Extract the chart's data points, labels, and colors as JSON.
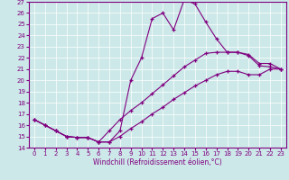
{
  "xlabel": "Windchill (Refroidissement éolien,°C)",
  "xlim": [
    -0.5,
    23.5
  ],
  "ylim": [
    14,
    27
  ],
  "xticks": [
    0,
    1,
    2,
    3,
    4,
    5,
    6,
    7,
    8,
    9,
    10,
    11,
    12,
    13,
    14,
    15,
    16,
    17,
    18,
    19,
    20,
    21,
    22,
    23
  ],
  "yticks": [
    14,
    15,
    16,
    17,
    18,
    19,
    20,
    21,
    22,
    23,
    24,
    25,
    26,
    27
  ],
  "bg_color": "#cce8e8",
  "line_color": "#800080",
  "c1x": [
    0,
    1,
    2,
    3,
    4,
    5,
    6,
    7,
    8,
    9,
    10,
    11,
    12,
    13,
    14,
    15,
    16,
    17,
    18,
    19,
    20,
    21,
    22,
    23
  ],
  "c1y": [
    16.5,
    16.0,
    15.5,
    15.0,
    14.9,
    14.9,
    14.5,
    14.5,
    15.5,
    20.0,
    22.0,
    25.5,
    26.0,
    24.5,
    27.2,
    26.8,
    25.2,
    23.7,
    22.5,
    22.5,
    22.2,
    21.3,
    21.2,
    21.0
  ],
  "c2x": [
    0,
    1,
    2,
    3,
    4,
    5,
    6,
    7,
    8,
    9,
    10,
    11,
    12,
    13,
    14,
    15,
    16,
    17,
    18,
    19,
    20,
    21,
    22,
    23
  ],
  "c2y": [
    16.5,
    16.0,
    15.5,
    15.0,
    14.9,
    14.9,
    14.5,
    15.5,
    16.5,
    17.3,
    18.0,
    18.8,
    19.6,
    20.4,
    21.2,
    21.8,
    22.4,
    22.5,
    22.5,
    22.5,
    22.3,
    21.5,
    21.5,
    21.0
  ],
  "c3x": [
    0,
    1,
    2,
    3,
    4,
    5,
    6,
    7,
    8,
    9,
    10,
    11,
    12,
    13,
    14,
    15,
    16,
    17,
    18,
    19,
    20,
    21,
    22,
    23
  ],
  "c3y": [
    16.5,
    16.0,
    15.5,
    15.0,
    14.9,
    14.9,
    14.5,
    14.5,
    15.0,
    15.7,
    16.3,
    17.0,
    17.6,
    18.3,
    18.9,
    19.5,
    20.0,
    20.5,
    20.8,
    20.8,
    20.5,
    20.5,
    21.0,
    21.0
  ]
}
